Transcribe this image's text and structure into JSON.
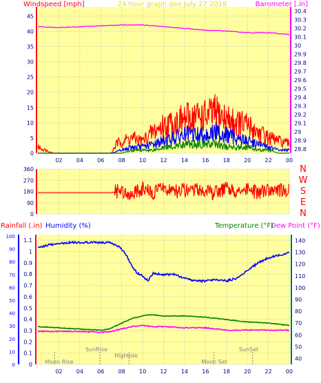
{
  "colors": {
    "background": "#FFFFFF",
    "plot_bg": "#FFFFA0",
    "grid": "#C0C0A0",
    "axis_text": "#000080",
    "red": "#FF0000",
    "blue": "#0000FF",
    "green": "#008000",
    "magenta": "#FF00FF",
    "title_yellow": "#E8E000"
  },
  "chart_data": [
    {
      "type": "line",
      "title": "24 hour graph dae   July 27 2019",
      "left_axis_label": "Windspeed [mph]",
      "right_axis_label": "Barometer [.in]",
      "x_ticks": [
        "02",
        "04",
        "06",
        "08",
        "10",
        "12",
        "14",
        "16",
        "18",
        "20",
        "22",
        "00"
      ],
      "y_left_ticks": [
        "0",
        "5",
        "10",
        "15",
        "20",
        "25",
        "30",
        "35",
        "40",
        "45"
      ],
      "ylim_left": [
        0,
        48
      ],
      "y_right_ticks": [
        "28.8",
        "28.9",
        "29",
        "29.1",
        "29.2",
        "29.3",
        "29.4",
        "29.5",
        "29.6",
        "29.7",
        "29.8",
        "29.9",
        "30",
        "30.1",
        "30.2",
        "30.3",
        "30.4"
      ],
      "ylim_right": [
        28.75,
        30.45
      ],
      "grid": true,
      "series": [
        {
          "name": "",
          "color": "#FF00FF",
          "axis": "right",
          "x": [
            0,
            2,
            4,
            6,
            8,
            10,
            12,
            14,
            16,
            18,
            20,
            22,
            24
          ],
          "y": [
            30.22,
            30.21,
            30.22,
            30.23,
            30.24,
            30.24,
            30.22,
            30.2,
            30.18,
            30.17,
            30.15,
            30.15,
            30.13
          ]
        },
        {
          "name": "",
          "color": "#FF0000",
          "axis": "left",
          "x": [
            0,
            1.5,
            3,
            5,
            7,
            7.5,
            8,
            9,
            10,
            11,
            12,
            13,
            14,
            15,
            16,
            17,
            18,
            19,
            20,
            21,
            22,
            23,
            24
          ],
          "y": [
            2,
            0,
            0,
            0,
            0,
            3,
            4,
            5,
            4,
            7,
            9,
            10,
            11,
            12,
            12,
            13,
            11,
            10,
            9,
            7,
            5,
            4,
            3
          ]
        },
        {
          "name": "",
          "color": "#0000FF",
          "axis": "left",
          "x": [
            0,
            7,
            8,
            9,
            10,
            11,
            12,
            13,
            14,
            15,
            16,
            17,
            18,
            19,
            20,
            21,
            22,
            23,
            24
          ],
          "y": [
            0,
            0,
            1,
            2,
            2,
            3,
            4,
            5,
            6,
            6,
            6,
            7,
            6,
            5,
            4,
            3,
            2,
            1,
            1
          ]
        },
        {
          "name": "",
          "color": "#008000",
          "axis": "left",
          "x": [
            0,
            7,
            8,
            9,
            10,
            11,
            12,
            13,
            14,
            15,
            16,
            17,
            18,
            19,
            20,
            21,
            22,
            23,
            24
          ],
          "y": [
            0,
            0,
            0,
            1,
            1,
            1,
            2,
            2,
            3,
            3,
            3,
            3,
            2,
            2,
            2,
            1,
            1,
            0,
            0
          ]
        }
      ]
    },
    {
      "type": "line",
      "title": "",
      "x_ticks": [
        "02",
        "04",
        "06",
        "08",
        "10",
        "12",
        "14",
        "16",
        "18",
        "20",
        "22",
        "00"
      ],
      "y_left_ticks": [
        "0",
        "90",
        "180",
        "270",
        "360"
      ],
      "ylim_left": [
        0,
        360
      ],
      "compass_labels": [
        "N",
        "W",
        "S",
        "E",
        "N"
      ],
      "grid": true,
      "series": [
        {
          "name": "",
          "color": "#FF0000",
          "x": [
            0,
            7,
            7.5,
            8,
            9,
            10,
            11,
            12,
            13,
            14,
            15,
            16,
            17,
            18,
            19,
            20,
            21,
            22,
            23,
            24
          ],
          "y": [
            170,
            170,
            180,
            190,
            160,
            200,
            170,
            210,
            180,
            190,
            200,
            180,
            170,
            200,
            180,
            190,
            170,
            180,
            190,
            185
          ]
        }
      ]
    },
    {
      "type": "line",
      "title": "",
      "labels_top": {
        "rainfall": "Rainfall (.in)",
        "humidity": "Humidity (%)",
        "temperature": "Temperature (°F)",
        "dewpoint": "Dew Point (°F)"
      },
      "x_ticks": [
        "02",
        "04",
        "06",
        "08",
        "10",
        "12",
        "14",
        "16",
        "18",
        "20",
        "22",
        "00"
      ],
      "humidity_ticks": [
        "0",
        "10",
        "20",
        "30",
        "40",
        "50",
        "60",
        "70",
        "80",
        "90",
        "100"
      ],
      "rain_ticks": [
        "0",
        "0.1",
        "0.2",
        "0.3",
        "0.4",
        "0.5",
        "0.6",
        "0.7",
        "0.8",
        "0.9",
        "1",
        "1.1"
      ],
      "temp_ticks": [
        "40",
        "50",
        "60",
        "70",
        "80",
        "90",
        "100",
        "110",
        "120",
        "130",
        "140"
      ],
      "ylim_rain": [
        0,
        1.15
      ],
      "ylim_temp": [
        35,
        145
      ],
      "annotations": [
        {
          "text": "Moon Rise",
          "x": 1.6
        },
        {
          "text": "SunRise",
          "x": 5.9
        },
        {
          "text": "Hightide",
          "x": 8.7
        },
        {
          "text": "Moon Set",
          "x": 16.8
        },
        {
          "text": "SunSet",
          "x": 20.5
        }
      ],
      "grid": true,
      "series": [
        {
          "name": "Humidity (%)",
          "color": "#0000FF",
          "axis": "humidity",
          "x": [
            0,
            1,
            2,
            3,
            4,
            5,
            6,
            7,
            8,
            8.5,
            9,
            9.5,
            10,
            10.5,
            11,
            12,
            13,
            14,
            15,
            16,
            17,
            18,
            19,
            20,
            21,
            22,
            23,
            24
          ],
          "y": [
            91,
            93,
            94,
            95,
            95,
            95,
            95,
            95,
            90,
            84,
            76,
            71,
            69,
            65,
            71,
            70,
            70,
            67,
            65,
            65,
            66,
            65,
            67,
            73,
            79,
            83,
            85,
            87
          ]
        },
        {
          "name": "Temperature (°F)",
          "color": "#008000",
          "axis": "temp",
          "x": [
            0,
            2,
            4,
            6,
            6.8,
            8,
            9,
            10,
            10.5,
            11,
            12,
            14,
            16,
            18,
            20,
            22,
            24
          ],
          "y": [
            67,
            66,
            65,
            64,
            65,
            70,
            74,
            76,
            77,
            77,
            76,
            76,
            75,
            73,
            71,
            70,
            68
          ]
        },
        {
          "name": "Dew Point (°F)",
          "color": "#FF00FF",
          "axis": "temp",
          "x": [
            0,
            2,
            4,
            6,
            7,
            8,
            9,
            10,
            11,
            12,
            14,
            16,
            18,
            20,
            22,
            24
          ],
          "y": [
            63,
            63,
            63,
            62,
            63,
            65,
            67,
            68,
            67,
            67,
            66,
            66,
            64,
            64,
            64,
            64
          ]
        },
        {
          "name": "Rainfall (.in)",
          "color": "#FF0000",
          "axis": "rain",
          "x": [
            0,
            24
          ],
          "y": [
            0,
            0
          ]
        }
      ]
    }
  ]
}
